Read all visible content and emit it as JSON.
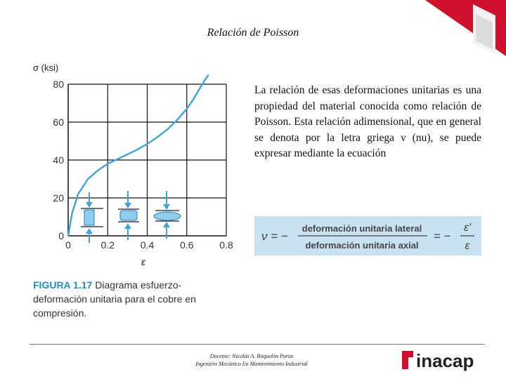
{
  "slide": {
    "title": "Relación de Poisson",
    "body_text": "La relación de esas deformaciones unitarias es una propiedad del material conocida como relación de Poisson. Esta relación adimensional, que en general se denota por la letra griega ν (nu), se puede expresar mediante la ecuación"
  },
  "equation": {
    "lhs": "ν = −",
    "numerator": "deformación unitaria lateral",
    "denominator": "deformación unitaria axial",
    "mid": "= −",
    "rhs_num": "ε′",
    "rhs_den": "ε"
  },
  "chart_data": {
    "type": "line",
    "title": "",
    "xlabel": "ε",
    "ylabel": "σ (ksi)",
    "xlim": [
      0,
      0.8
    ],
    "ylim": [
      0,
      80
    ],
    "x_ticks": [
      "0",
      "0.2",
      "0.4",
      "0.6",
      "0.8"
    ],
    "y_ticks": [
      "0",
      "20",
      "40",
      "60",
      "80"
    ],
    "grid": true,
    "series": [
      {
        "x": [
          0.0,
          0.02,
          0.05,
          0.1,
          0.15,
          0.2,
          0.25,
          0.3,
          0.35,
          0.4,
          0.45,
          0.5,
          0.55,
          0.6,
          0.63,
          0.65,
          0.67,
          0.69,
          0.71
        ],
        "y": [
          0,
          12,
          22,
          30,
          34.5,
          38,
          40.5,
          43,
          45.5,
          48.5,
          52,
          56,
          61,
          67,
          71.5,
          75,
          78.5,
          82,
          85
        ]
      }
    ]
  },
  "figure": {
    "label": "FIGURA 1.17",
    "caption": "Diagrama esfuerzo-deformación unitaria para el cobre en compresión."
  },
  "footer": {
    "line1": "Docente: Nicolás A. Roquelón Poras",
    "line2": "Ingeniero Mecánico En Mantenimiento Industrial"
  },
  "brand": {
    "name": "inacap",
    "color": "#d0102c",
    "accent": "#1f8fc4",
    "specimen_color": "#8ecdf0"
  }
}
